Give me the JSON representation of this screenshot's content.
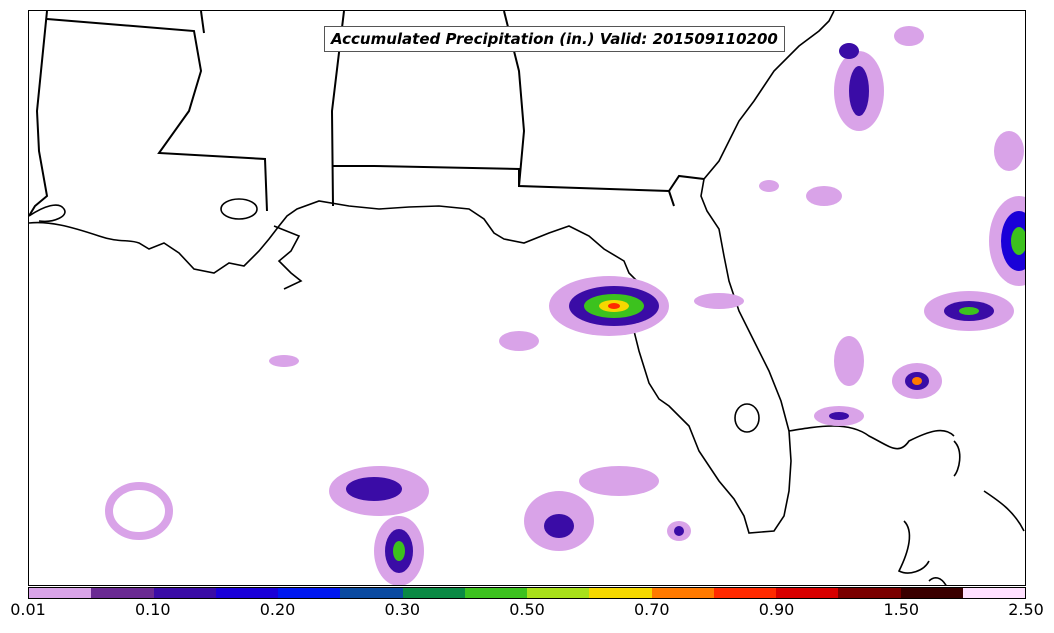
{
  "map": {
    "title": "Accumulated Precipitation (in.) Valid: 201509110200",
    "variable": "Accumulated Precipitation",
    "units": "in.",
    "valid_time": "201509110200"
  },
  "colorbar": {
    "colors": [
      "#d9a3e8",
      "#6a2a93",
      "#3a0ca6",
      "#1a00d8",
      "#0018f0",
      "#0a4aa0",
      "#0a8a44",
      "#3cc21e",
      "#a8e01a",
      "#f5d800",
      "#ff7a00",
      "#ff2a00",
      "#d80000",
      "#7a0000",
      "#3a0000",
      "#ffe0ff"
    ],
    "tick_labels": [
      "0.01",
      "0.10",
      "0.20",
      "0.30",
      "0.50",
      "0.70",
      "0.90",
      "1.50",
      "2.50"
    ]
  }
}
